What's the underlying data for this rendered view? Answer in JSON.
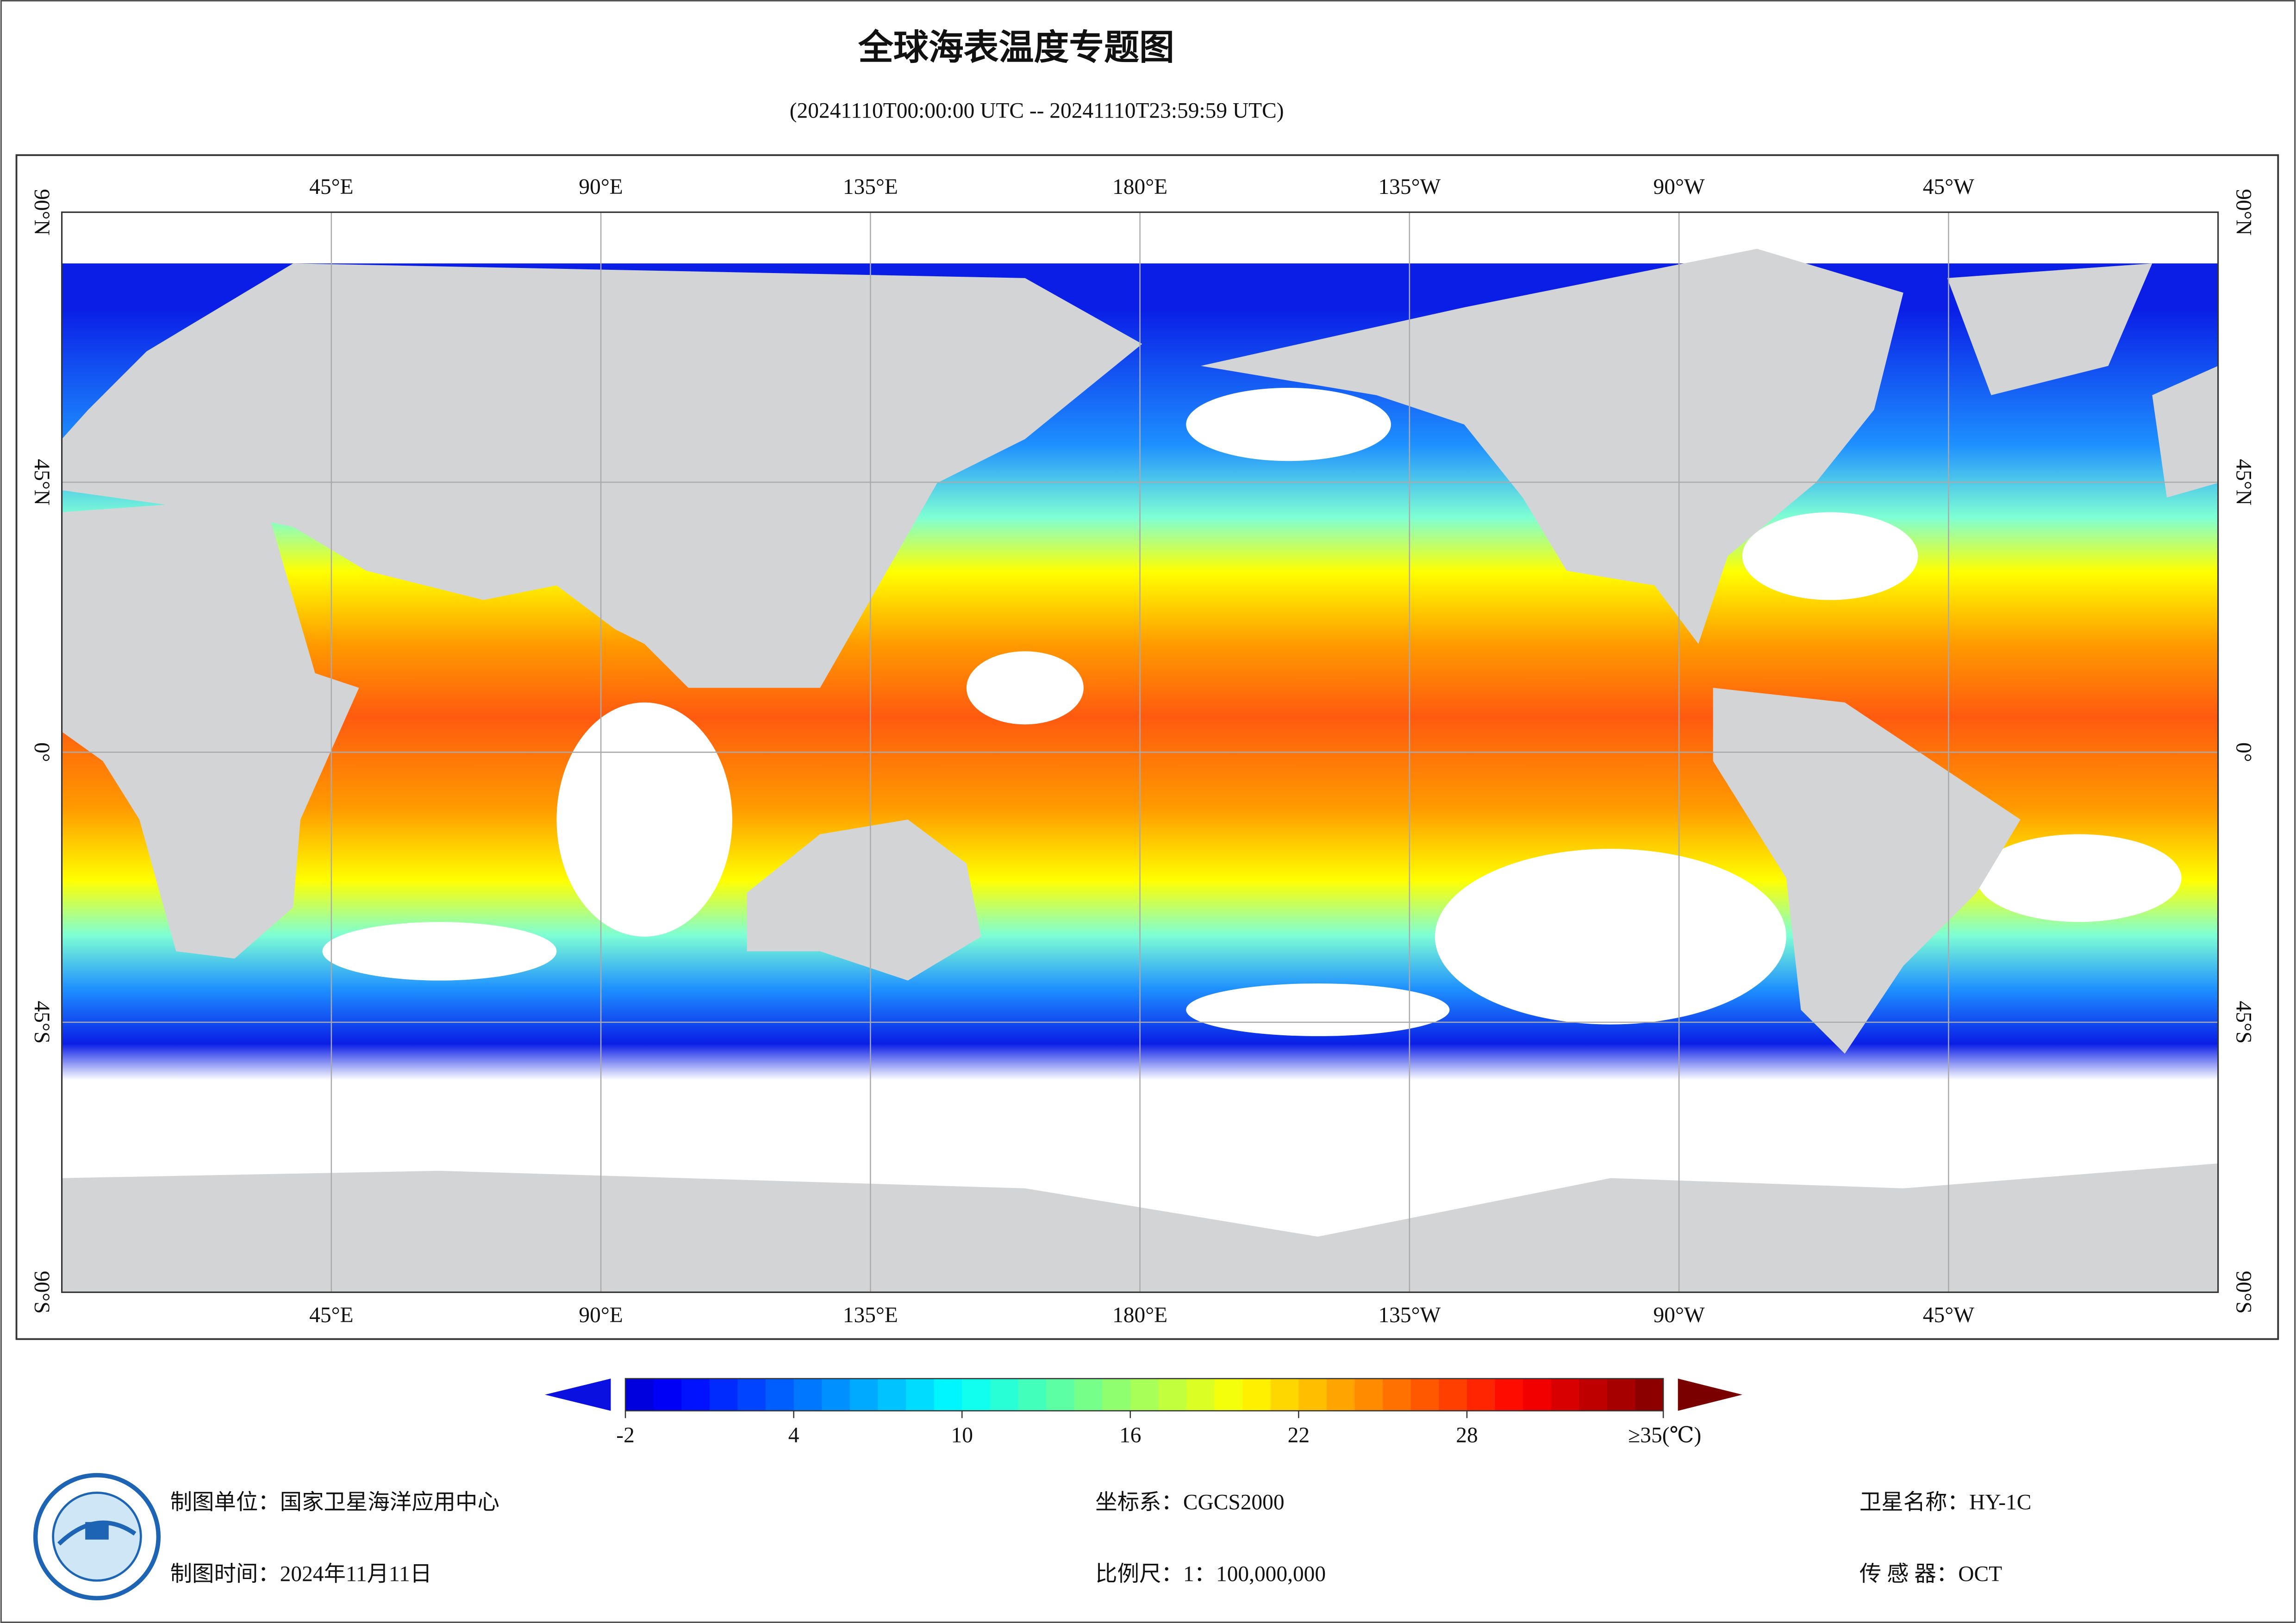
{
  "header": {
    "title": "全球海表温度专题图",
    "subtitle": "(20241110T00:00:00 UTC -- 20241110T23:59:59 UTC)"
  },
  "map": {
    "lon_labels": [
      {
        "value": 45,
        "label": "45°E"
      },
      {
        "value": 90,
        "label": "90°E"
      },
      {
        "value": 135,
        "label": "135°E"
      },
      {
        "value": 180,
        "label": "180°E"
      },
      {
        "value": 225,
        "label": "135°W"
      },
      {
        "value": 270,
        "label": "90°W"
      },
      {
        "value": 315,
        "label": "45°W"
      }
    ],
    "lat_labels": [
      {
        "value": 90,
        "label": "90°N"
      },
      {
        "value": 45,
        "label": "45°N"
      },
      {
        "value": 0,
        "label": "0°"
      },
      {
        "value": -45,
        "label": "45°S"
      },
      {
        "value": -90,
        "label": "90°S"
      }
    ],
    "colorbar": {
      "colormap": "jet",
      "range": [
        -2,
        35
      ],
      "ticks": [
        -2,
        4,
        10,
        16,
        22,
        28,
        {
          "value": 35,
          "label": "≥35(℃)"
        }
      ]
    }
  },
  "footer": {
    "organization": "制图单位：国家卫星海洋应用中心",
    "date": "制图时间：2024年11月11日",
    "crs": "坐标系：CGCS2000",
    "scale": "比例尺：1：100,000,000",
    "satellite": "卫星名称：HY-1C",
    "sensor": "传 感 器：OCT"
  }
}
